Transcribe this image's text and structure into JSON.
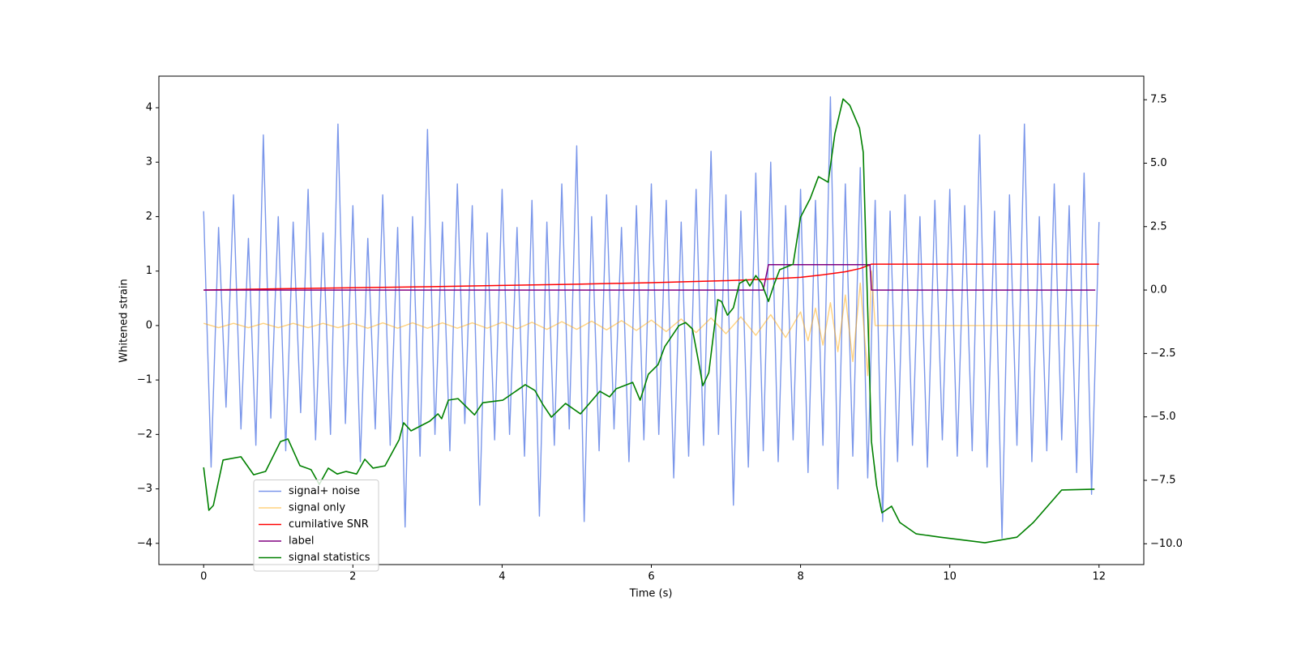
{
  "chart_data": {
    "type": "line",
    "xlabel": "Time (s)",
    "ylabel": "Whitened strain",
    "xlim": [
      -0.6,
      12.6
    ],
    "xticks": [
      0,
      2,
      4,
      6,
      8,
      10,
      12
    ],
    "ylim": [
      -4.39,
      4.58
    ],
    "yticks": [
      {
        "value": -4,
        "label": "−4"
      },
      {
        "value": -3,
        "label": "−3"
      },
      {
        "value": -2,
        "label": "−2"
      },
      {
        "value": -1,
        "label": "−1"
      },
      0,
      1,
      2,
      3,
      4
    ],
    "y2lim": [
      -10.82,
      8.43
    ],
    "y2ticks": [
      {
        "value": -10,
        "label": "−10.0"
      },
      {
        "value": -7.5,
        "label": "−7.5"
      },
      {
        "value": -5,
        "label": "−5.0"
      },
      {
        "value": -2.5,
        "label": "−2.5"
      },
      {
        "value": 0,
        "label": "0.0"
      },
      2.5,
      {
        "value": 5,
        "label": "5.0"
      },
      7.5
    ],
    "legend": "lower left",
    "series": [
      {
        "name": "signal+ noise",
        "color": "#4169e1",
        "x": [
          0,
          0.1,
          0.2,
          0.3,
          0.4,
          0.5,
          0.6,
          0.7,
          0.8,
          0.9,
          1,
          1.1,
          1.2,
          1.3,
          1.4,
          1.5,
          1.6,
          1.7,
          1.8,
          1.9,
          2,
          2.1,
          2.2,
          2.3,
          2.4,
          2.5,
          2.6,
          2.7,
          2.8,
          2.9,
          3,
          3.1,
          3.2,
          3.3,
          3.4,
          3.5,
          3.6,
          3.7,
          3.8,
          3.9,
          4,
          4.1,
          4.2,
          4.3,
          4.4,
          4.5,
          4.6,
          4.7,
          4.8,
          4.9,
          5,
          5.1,
          5.2,
          5.3,
          5.4,
          5.5,
          5.6,
          5.7,
          5.8,
          5.9,
          6,
          6.1,
          6.2,
          6.3,
          6.4,
          6.5,
          6.6,
          6.7,
          6.8,
          6.9,
          7,
          7.1,
          7.2,
          7.3,
          7.4,
          7.5,
          7.6,
          7.7,
          7.8,
          7.9,
          8,
          8.1,
          8.2,
          8.3,
          8.4,
          8.5,
          8.6,
          8.7,
          8.8,
          8.9,
          9,
          9.1,
          9.2,
          9.3,
          9.4,
          9.5,
          9.6,
          9.7,
          9.8,
          9.9,
          10,
          10.1,
          10.2,
          10.3,
          10.4,
          10.5,
          10.6,
          10.7,
          10.8,
          10.9,
          11,
          11.1,
          11.2,
          11.3,
          11.4,
          11.5,
          11.6,
          11.7,
          11.8,
          11.9,
          12
        ],
        "values": [
          2.1,
          -2.6,
          1.8,
          -1.5,
          2.4,
          -1.9,
          1.6,
          -2.2,
          3.5,
          -1.7,
          2.0,
          -2.3,
          1.9,
          -1.6,
          2.5,
          -2.1,
          1.7,
          -2.0,
          3.7,
          -1.8,
          2.2,
          -2.5,
          1.6,
          -1.9,
          2.4,
          -2.2,
          1.8,
          -3.7,
          2.0,
          -2.4,
          3.6,
          -2.0,
          1.9,
          -2.3,
          2.6,
          -1.8,
          2.2,
          -3.3,
          1.7,
          -2.1,
          2.5,
          -2.0,
          1.8,
          -2.4,
          2.3,
          -3.5,
          1.9,
          -2.2,
          2.6,
          -1.9,
          3.3,
          -3.6,
          2.0,
          -2.3,
          2.4,
          -1.9,
          1.8,
          -2.5,
          2.2,
          -2.1,
          2.6,
          -2.0,
          2.3,
          -2.8,
          1.9,
          -2.4,
          2.5,
          -2.2,
          3.2,
          -2.0,
          2.4,
          -3.3,
          2.1,
          -2.6,
          2.8,
          -2.3,
          3.0,
          -2.5,
          2.2,
          -2.1,
          2.5,
          -2.7,
          2.3,
          -2.2,
          4.2,
          -3.0,
          2.6,
          -2.4,
          2.9,
          -2.8,
          2.3,
          -3.6,
          2.1,
          -2.5,
          2.4,
          -2.2,
          2.0,
          -2.6,
          2.3,
          -2.1,
          2.5,
          -2.4,
          2.2,
          -2.3,
          3.5,
          -2.6,
          2.1,
          -3.9,
          2.4,
          -2.2,
          3.7,
          -2.5,
          2.0,
          -2.3,
          2.6,
          -2.1,
          2.2,
          -2.7,
          2.8,
          -3.1,
          1.9
        ]
      },
      {
        "name": "signal only",
        "color": "#ffa500",
        "x": [
          0,
          0.2,
          0.4,
          0.6,
          0.8,
          1,
          1.2,
          1.4,
          1.6,
          1.8,
          2,
          2.2,
          2.4,
          2.6,
          2.8,
          3,
          3.2,
          3.4,
          3.6,
          3.8,
          4,
          4.2,
          4.4,
          4.6,
          4.8,
          5,
          5.2,
          5.4,
          5.6,
          5.8,
          6,
          6.2,
          6.4,
          6.6,
          6.8,
          7,
          7.2,
          7.4,
          7.6,
          7.8,
          8,
          8.1,
          8.2,
          8.3,
          8.4,
          8.5,
          8.6,
          8.7,
          8.8,
          8.9,
          8.95,
          9,
          12
        ],
        "values": [
          0.04,
          -0.04,
          0.04,
          -0.04,
          0.04,
          -0.04,
          0.04,
          -0.04,
          0.04,
          -0.04,
          0.04,
          -0.05,
          0.05,
          -0.05,
          0.05,
          -0.05,
          0.05,
          -0.05,
          0.05,
          -0.05,
          0.06,
          -0.06,
          0.06,
          -0.07,
          0.07,
          -0.07,
          0.08,
          -0.08,
          0.09,
          -0.09,
          0.1,
          -0.11,
          0.12,
          -0.13,
          0.14,
          -0.15,
          0.16,
          -0.18,
          0.2,
          -0.22,
          0.25,
          -0.28,
          0.32,
          -0.36,
          0.42,
          -0.48,
          0.56,
          -0.66,
          0.78,
          -0.92,
          1.0,
          0,
          0
        ]
      },
      {
        "name": "cumilative SNR",
        "color": "#ff0000",
        "axis": "y2",
        "x": [
          0,
          1,
          2,
          3,
          4,
          5,
          6,
          7,
          7.5,
          8,
          8.3,
          8.6,
          8.8,
          8.95,
          12
        ],
        "values": [
          0,
          0.05,
          0.09,
          0.13,
          0.18,
          0.23,
          0.29,
          0.37,
          0.42,
          0.5,
          0.6,
          0.72,
          0.85,
          1.02,
          1.02
        ]
      },
      {
        "name": "label",
        "color": "#800080",
        "axis": "y2",
        "x": [
          0,
          7.5,
          7.57,
          8.93,
          8.95,
          11.95
        ],
        "values": [
          0,
          0,
          1,
          1,
          0,
          0
        ]
      },
      {
        "name": "signal statistics",
        "color": "#008000",
        "axis": "y2",
        "x": [
          0,
          0.07,
          0.13,
          0.26,
          0.5,
          0.67,
          0.83,
          1.03,
          1.13,
          1.29,
          1.44,
          1.55,
          1.67,
          1.79,
          1.91,
          2.05,
          2.16,
          2.27,
          2.43,
          2.62,
          2.68,
          2.78,
          3.03,
          3.14,
          3.19,
          3.28,
          3.41,
          3.63,
          3.74,
          4.01,
          4.31,
          4.44,
          4.55,
          4.66,
          4.85,
          5.05,
          5.31,
          5.44,
          5.53,
          5.75,
          5.85,
          5.96,
          6.09,
          6.18,
          6.37,
          6.46,
          6.55,
          6.64,
          6.69,
          6.77,
          6.89,
          6.94,
          7.02,
          7.1,
          7.18,
          7.27,
          7.32,
          7.4,
          7.48,
          7.57,
          7.65,
          7.72,
          7.9,
          8.0,
          8.13,
          8.24,
          8.37,
          8.46,
          8.57,
          8.66,
          8.79,
          8.84,
          8.95,
          9.02,
          9.09,
          9.22,
          9.33,
          9.55,
          9.87,
          10.31,
          10.47,
          10.9,
          11.12,
          11.5,
          11.94
        ],
        "values": [
          -6.99,
          -8.68,
          -8.49,
          -6.7,
          -6.57,
          -7.28,
          -7.15,
          -5.97,
          -5.87,
          -6.92,
          -7.08,
          -7.66,
          -7.02,
          -7.25,
          -7.15,
          -7.25,
          -6.67,
          -7.02,
          -6.93,
          -5.9,
          -5.23,
          -5.55,
          -5.17,
          -4.88,
          -5.07,
          -4.34,
          -4.28,
          -4.92,
          -4.44,
          -4.34,
          -3.73,
          -3.96,
          -4.53,
          -5.01,
          -4.47,
          -4.88,
          -3.99,
          -4.21,
          -3.89,
          -3.64,
          -4.34,
          -3.32,
          -2.94,
          -2.23,
          -1.4,
          -1.28,
          -1.53,
          -2.94,
          -3.77,
          -3.26,
          -0.38,
          -0.45,
          -0.99,
          -0.7,
          0.26,
          0.41,
          0.16,
          0.57,
          0.26,
          -0.45,
          0.26,
          0.8,
          1.02,
          2.87,
          3.61,
          4.47,
          4.25,
          6.16,
          7.53,
          7.28,
          6.38,
          5.43,
          -5.97,
          -7.72,
          -8.78,
          -8.52,
          -9.16,
          -9.61,
          -9.74,
          -9.9,
          -9.96,
          -9.74,
          -9.16,
          -7.88,
          -7.85
        ]
      }
    ]
  }
}
